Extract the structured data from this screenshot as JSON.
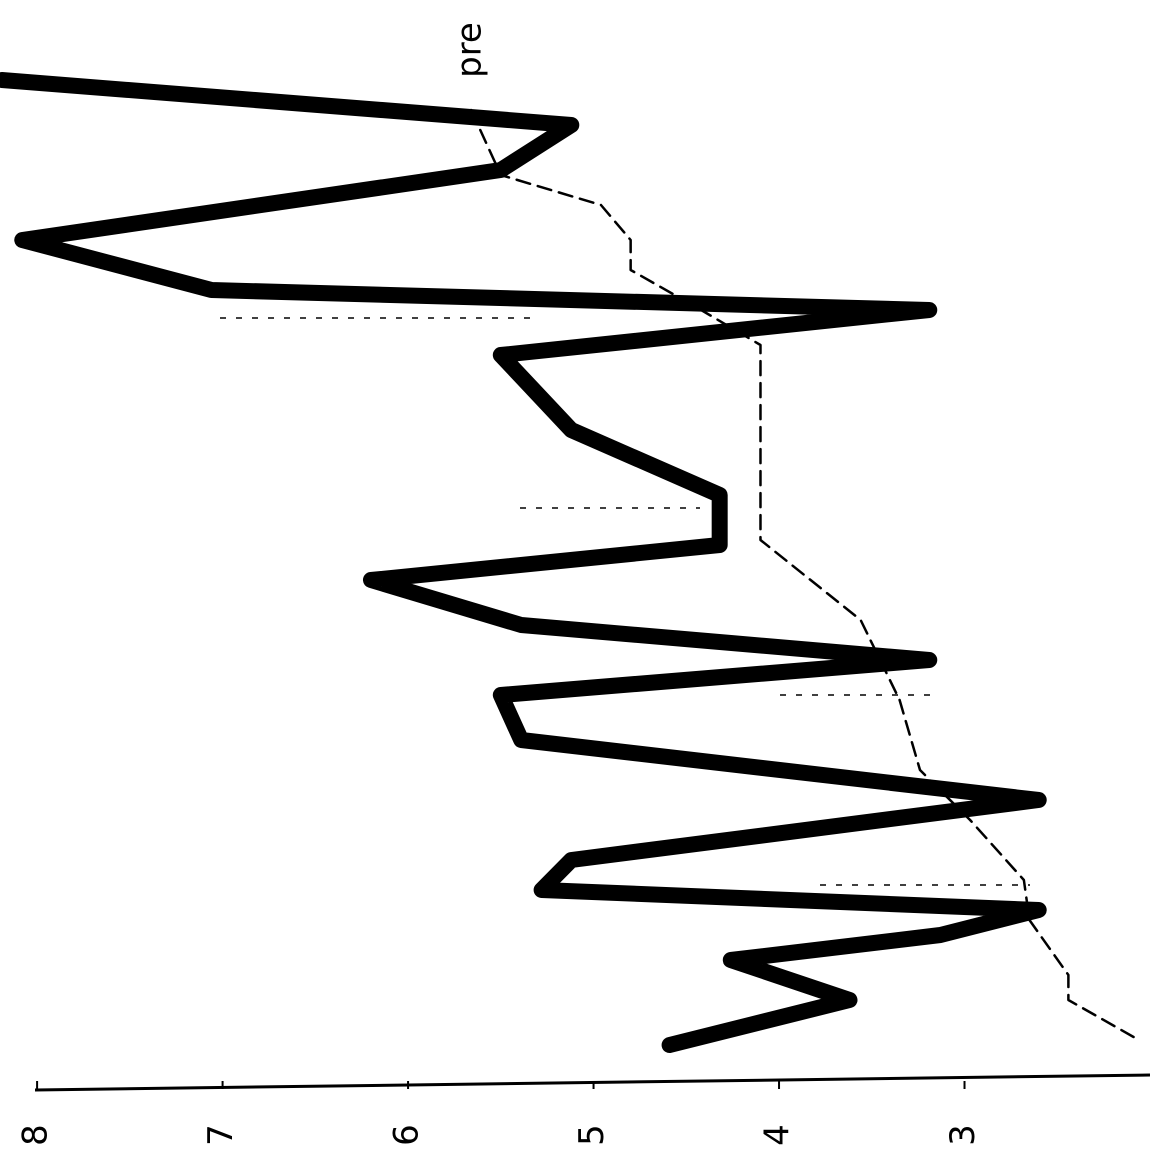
{
  "chart_data": {
    "type": "line",
    "xlim": [
      8.2,
      2.0
    ],
    "xticks": [
      8,
      7,
      6,
      5,
      4,
      3
    ],
    "ylim": [
      0,
      116.3
    ],
    "series": [
      {
        "color": "#000000",
        "style": "solid",
        "t": [
          8,
          12.5,
          17,
          24,
          29,
          31,
          35.5,
          43,
          49.5,
          54.5,
          58,
          62.5,
          66,
          69.5,
          74,
          80,
          86,
          89,
          91,
          93.5,
          96,
          100,
          104.5
        ],
        "values": [
          8.19,
          5.12,
          5.5,
          8.08,
          7.06,
          3.19,
          5.5,
          5.12,
          4.32,
          4.32,
          6.2,
          5.39,
          3.19,
          5.5,
          5.39,
          2.6,
          5.12,
          5.28,
          2.6,
          3.13,
          4.26,
          3.62,
          4.59
        ]
      },
      {
        "name": "pre",
        "color": "#000000",
        "style": "dashed",
        "t": [
          11,
          17.5,
          20.5,
          24,
          27,
          31,
          34.5,
          54,
          62,
          70,
          77,
          82,
          88,
          92,
          97.5,
          100,
          104
        ],
        "values": [
          5.66,
          5.5,
          4.96,
          4.8,
          4.8,
          4.42,
          4.1,
          4.1,
          3.56,
          3.35,
          3.24,
          2.97,
          2.68,
          2.65,
          2.44,
          2.44,
          2.06
        ]
      }
    ]
  }
}
